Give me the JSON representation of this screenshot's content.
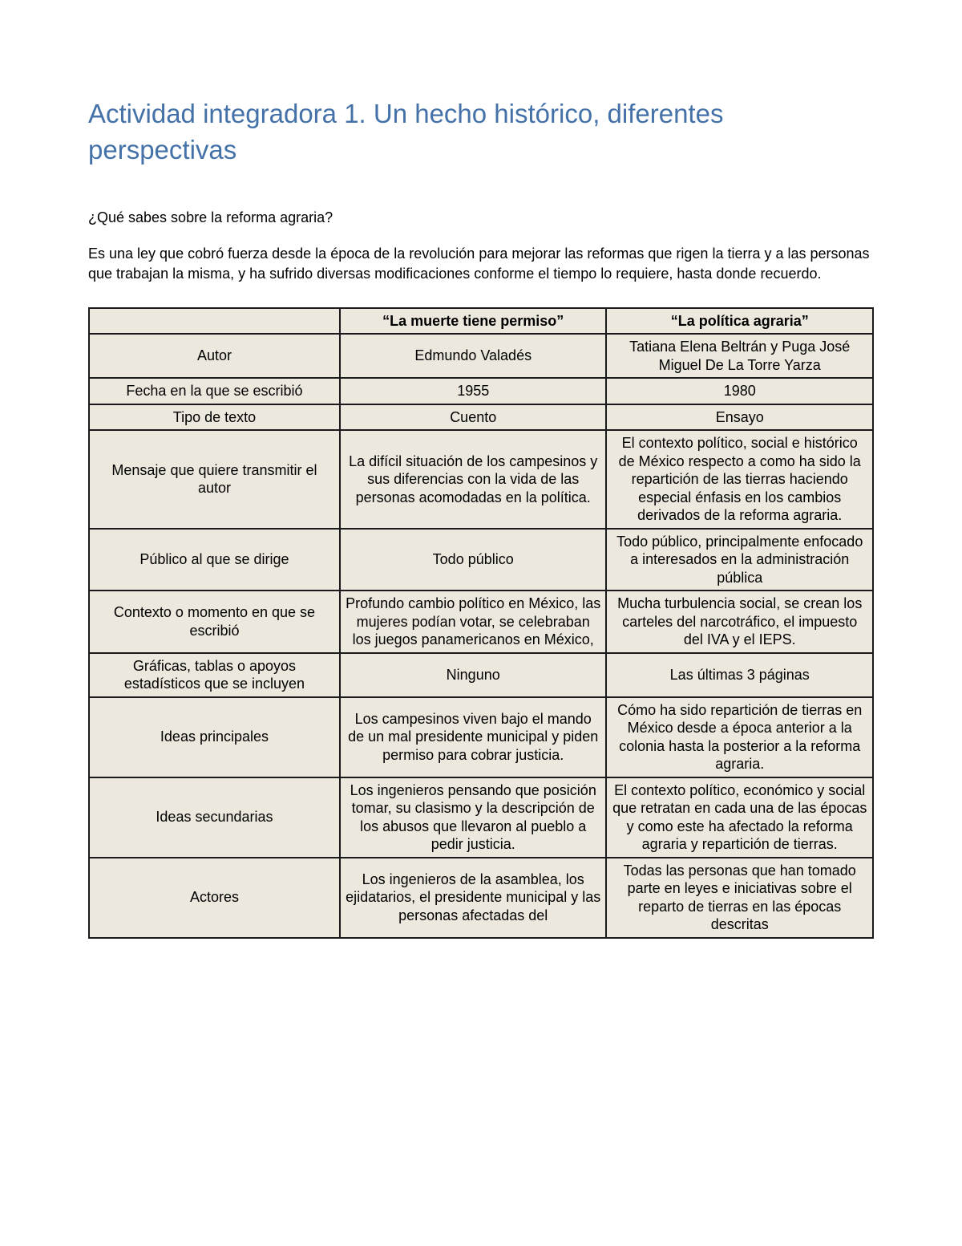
{
  "title": "Actividad integradora 1. Un hecho histórico, diferentes perspectivas",
  "question": "¿Qué sabes sobre la reforma agraria?",
  "answer": "Es una ley que cobró fuerza desde la época de la revolución para mejorar las reformas que rigen la tierra y a las personas que trabajan la misma, y ha sufrido diversas modificaciones conforme el tiempo lo requiere, hasta donde recuerdo.",
  "table": {
    "background_color": "#ece8dd",
    "border_color": "#1a1a1a",
    "header": {
      "blank": "",
      "col_a": "“La muerte tiene permiso”",
      "col_b": "“La política agraria”"
    },
    "rows": [
      {
        "label": "Autor",
        "a": "Edmundo Valadés",
        "b": "Tatiana Elena Beltrán y Puga José Miguel De La Torre Yarza"
      },
      {
        "label": "Fecha en la que se escribió",
        "a": "1955",
        "b": "1980"
      },
      {
        "label": "Tipo de texto",
        "a": "Cuento",
        "b": "Ensayo"
      },
      {
        "label": "Mensaje que quiere transmitir el autor",
        "a": "La difícil situación de los campesinos y sus diferencias con la vida de las personas acomodadas en la política.",
        "b": "El contexto político, social e histórico de México respecto a como ha sido la repartición de las tierras haciendo especial énfasis en los cambios derivados de la reforma agraria."
      },
      {
        "label": "Público al que se dirige",
        "a": "Todo público",
        "b": "Todo público, principalmente enfocado a interesados en la administración pública"
      },
      {
        "label": "Contexto o momento en que se escribió",
        "a": "Profundo cambio político en México, las mujeres podían votar, se celebraban los juegos panamericanos en México,",
        "b": "Mucha turbulencia social, se crean los carteles del narcotráfico, el impuesto del IVA y el IEPS."
      },
      {
        "label": "Gráficas, tablas o apoyos estadísticos que se incluyen",
        "a": "Ninguno",
        "b": "Las últimas 3 páginas"
      },
      {
        "label": "Ideas principales",
        "a": "Los campesinos viven bajo el mando de un mal presidente municipal y piden permiso para cobrar justicia.",
        "b": "Cómo ha sido repartición de tierras en México desde a época anterior a la colonia hasta la posterior a la reforma agraria."
      },
      {
        "label": "Ideas secundarias",
        "a": "Los ingenieros pensando que posición tomar, su clasismo y la descripción de los abusos que llevaron al pueblo a pedir justicia.",
        "b": "El contexto político, económico y social que retratan en cada una de las épocas y como este ha afectado la reforma agraria y repartición de tierras."
      },
      {
        "label": "Actores",
        "a": "Los ingenieros de la asamblea, los ejidatarios, el presidente municipal y las personas afectadas del",
        "b": "Todas las personas que han tomado parte en leyes e iniciativas sobre el reparto de tierras en las épocas descritas"
      }
    ]
  }
}
